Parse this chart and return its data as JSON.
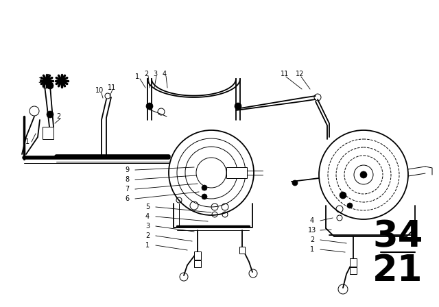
{
  "background_color": "#ffffff",
  "line_color": "#000000",
  "fig_width": 6.4,
  "fig_height": 4.48,
  "dpi": 100,
  "number_34": "34",
  "number_21": "21",
  "number_fontsize": 38
}
